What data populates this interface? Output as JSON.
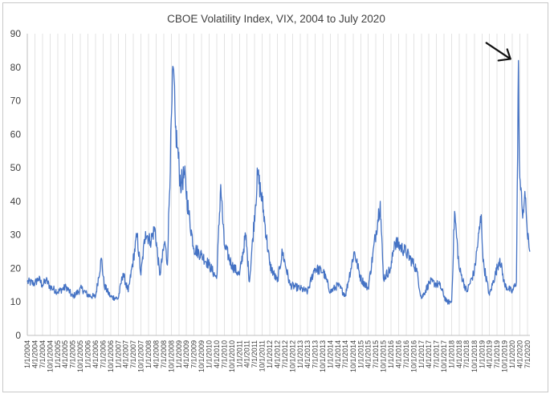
{
  "chart_data": {
    "type": "line",
    "title": "CBOE Volatility Index, VIX, 2004 to July 2020",
    "xlabel": "",
    "ylabel": "",
    "ylim": [
      0,
      90
    ],
    "yticks": [
      0,
      10,
      20,
      30,
      40,
      50,
      60,
      70,
      80,
      90
    ],
    "grid": "vertical gridlines at each x tick",
    "legend": "none",
    "series_color": "#4472c4",
    "annotation": "black arrow pointing to the March 2020 peak",
    "x_tick_labels": [
      "1/1/2004",
      "4/1/2004",
      "7/1/2004",
      "10/1/2004",
      "1/1/2005",
      "4/1/2005",
      "7/1/2005",
      "10/1/2005",
      "1/1/2006",
      "4/1/2006",
      "7/1/2006",
      "10/1/2006",
      "1/1/2007",
      "4/1/2007",
      "7/1/2007",
      "10/1/2007",
      "1/1/2008",
      "4/1/2008",
      "7/1/2008",
      "10/1/2008",
      "1/1/2009",
      "4/1/2009",
      "7/1/2009",
      "10/1/2009",
      "1/1/2010",
      "4/1/2010",
      "7/1/2010",
      "10/1/2010",
      "1/1/2011",
      "4/1/2011",
      "7/1/2011",
      "10/1/2011",
      "1/1/2012",
      "4/1/2012",
      "7/1/2012",
      "10/1/2012",
      "1/1/2013",
      "4/1/2013",
      "7/1/2013",
      "10/1/2013",
      "1/1/2014",
      "4/1/2014",
      "7/1/2014",
      "10/1/2014",
      "1/1/2015",
      "4/1/2015",
      "7/1/2015",
      "10/1/2015",
      "1/1/2016",
      "4/1/2016",
      "7/1/2016",
      "10/1/2016",
      "1/1/2017",
      "4/1/2017",
      "7/1/2017",
      "10/1/2017",
      "1/1/2018",
      "4/1/2018",
      "7/1/2018",
      "10/1/2018",
      "1/1/2019",
      "4/1/2019",
      "7/1/2019",
      "10/1/2019",
      "1/1/2020",
      "4/1/2020",
      "7/1/2020"
    ],
    "series": [
      {
        "x": [
          "2004-01-01",
          "2004-04-01",
          "2004-05-15",
          "2004-07-01",
          "2004-08-15",
          "2004-10-01",
          "2005-01-01",
          "2005-04-15",
          "2005-07-01",
          "2005-10-15",
          "2006-01-01",
          "2006-04-01",
          "2006-06-13",
          "2006-07-15",
          "2006-10-01",
          "2007-01-01",
          "2007-02-27",
          "2007-05-01",
          "2007-08-16",
          "2007-10-01",
          "2007-11-26",
          "2008-01-22",
          "2008-03-17",
          "2008-05-15",
          "2008-07-15",
          "2008-08-15",
          "2008-10-10",
          "2008-10-24",
          "2008-11-20",
          "2008-12-15",
          "2009-01-20",
          "2009-03-09",
          "2009-05-01",
          "2009-07-01",
          "2009-10-01",
          "2010-01-01",
          "2010-04-01",
          "2010-05-20",
          "2010-07-01",
          "2010-10-01",
          "2011-01-01",
          "2011-03-16",
          "2011-05-01",
          "2011-08-08",
          "2011-10-03",
          "2012-01-01",
          "2012-04-01",
          "2012-06-01",
          "2012-09-01",
          "2013-01-01",
          "2013-04-01",
          "2013-06-24",
          "2013-10-08",
          "2014-01-01",
          "2014-04-01",
          "2014-07-01",
          "2014-10-15",
          "2015-01-01",
          "2015-04-01",
          "2015-08-24",
          "2015-10-01",
          "2016-01-01",
          "2016-02-11",
          "2016-06-27",
          "2016-11-01",
          "2017-01-01",
          "2017-04-13",
          "2017-08-10",
          "2017-11-01",
          "2018-01-01",
          "2018-02-05",
          "2018-04-01",
          "2018-07-01",
          "2018-10-01",
          "2018-12-24",
          "2019-01-15",
          "2019-04-01",
          "2019-08-05",
          "2019-10-01",
          "2020-01-01",
          "2020-02-20",
          "2020-03-16",
          "2020-03-20",
          "2020-04-01",
          "2020-05-01",
          "2020-06-11",
          "2020-07-01",
          "2020-07-31"
        ],
        "y": [
          16,
          15.5,
          17,
          15,
          16.5,
          14.5,
          13,
          14.5,
          11.5,
          14,
          12,
          11.5,
          23,
          15,
          11.5,
          11,
          18.5,
          13,
          30,
          18,
          31,
          28,
          32,
          18,
          28,
          21,
          70,
          80,
          62,
          56,
          45,
          48,
          36,
          26,
          24,
          21,
          17,
          45,
          27,
          21,
          18,
          30,
          16,
          48,
          40,
          21,
          16,
          25,
          15,
          14,
          13,
          20,
          19,
          13,
          15,
          12,
          25,
          17,
          14,
          40,
          17,
          20,
          28,
          25,
          20,
          11,
          16,
          15,
          10,
          10,
          37,
          20,
          13,
          19,
          36,
          22,
          12,
          23,
          15,
          13,
          16,
          82,
          66,
          47,
          37,
          41,
          30,
          25
        ]
      }
    ]
  }
}
